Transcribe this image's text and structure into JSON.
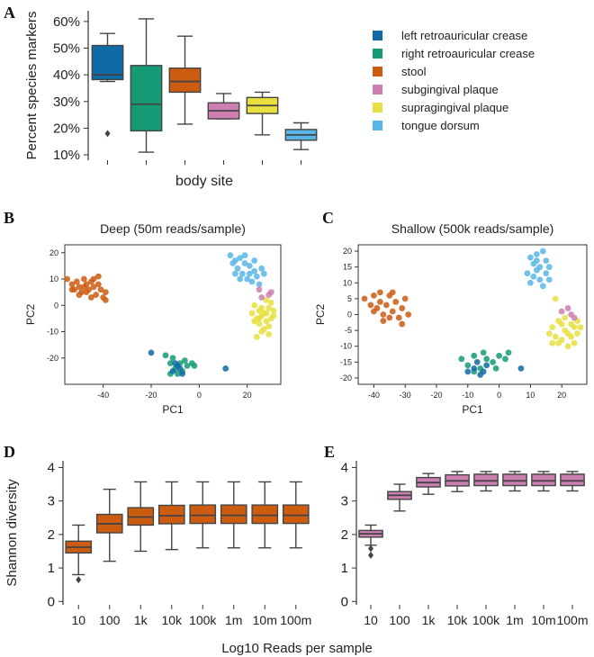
{
  "figure": {
    "shared_xlabel": "Log10 Reads per sample"
  },
  "chart_data": [
    {
      "panel": "A",
      "type": "box",
      "title": "",
      "xlabel": "body site",
      "ylabel": "Percent species markers",
      "ylim": [
        8,
        64
      ],
      "yticks": [
        10,
        20,
        30,
        40,
        50,
        60
      ],
      "ytick_labels": [
        "10%",
        "20%",
        "30%",
        "40%",
        "50%",
        "60%"
      ],
      "legend_position": "right",
      "categories": [
        "left retroauricular crease",
        "right retroauricular crease",
        "stool",
        "subgingival plaque",
        "supragingival plaque",
        "tongue dorsum"
      ],
      "colors": [
        "#0f6aa6",
        "#149b76",
        "#cc5c10",
        "#cc7fb0",
        "#e8e040",
        "#58b6e6"
      ],
      "boxes": [
        {
          "min": 37.5,
          "q1": 38.2,
          "median": 40,
          "q3": 51,
          "max": 55.5,
          "outliers": [
            18
          ]
        },
        {
          "min": 11,
          "q1": 19,
          "median": 29,
          "q3": 43.5,
          "max": 61,
          "outliers": []
        },
        {
          "min": 21.5,
          "q1": 33.5,
          "median": 37.5,
          "q3": 42.5,
          "max": 54.5,
          "outliers": []
        },
        {
          "min": 23.5,
          "q1": 23.5,
          "median": 26.5,
          "q3": 29.5,
          "max": 33,
          "outliers": []
        },
        {
          "min": 17.5,
          "q1": 25.5,
          "median": 28.5,
          "q3": 31.5,
          "max": 33.5,
          "outliers": []
        },
        {
          "min": 12,
          "q1": 15.5,
          "median": 17.5,
          "q3": 19.5,
          "max": 22,
          "outliers": []
        }
      ]
    },
    {
      "panel": "B",
      "type": "scatter",
      "title": "Deep (50m reads/sample)",
      "xlabel": "PC1",
      "ylabel": "PC2",
      "xlim": [
        -56,
        34
      ],
      "ylim": [
        -30,
        23
      ],
      "xticks": [
        -40,
        -20,
        0,
        20
      ],
      "yticks": [
        -20,
        -10,
        0,
        10,
        20
      ],
      "clusters": [
        {
          "group": "stool",
          "color": "#cc5c10",
          "points": [
            [
              -55,
              10
            ],
            [
              -53,
              8
            ],
            [
              -52,
              6
            ],
            [
              -51,
              9
            ],
            [
              -50,
              7
            ],
            [
              -49,
              5
            ],
            [
              -48,
              10
            ],
            [
              -47,
              8
            ],
            [
              -46,
              6
            ],
            [
              -45,
              9
            ],
            [
              -44,
              7
            ],
            [
              -43,
              4
            ],
            [
              -42,
              8
            ],
            [
              -41,
              6
            ],
            [
              -40,
              3
            ],
            [
              -39,
              5
            ],
            [
              -42,
              11
            ],
            [
              -47,
              5
            ],
            [
              -44,
              10
            ],
            [
              -50,
              4
            ],
            [
              -45,
              3
            ],
            [
              -39,
              2
            ],
            [
              -53,
              6
            ],
            [
              -48,
              7
            ]
          ]
        },
        {
          "group": "tongue dorsum",
          "color": "#58b6e6",
          "points": [
            [
              13,
              19
            ],
            [
              15,
              17
            ],
            [
              17,
              18
            ],
            [
              19,
              16
            ],
            [
              21,
              15
            ],
            [
              23,
              13
            ],
            [
              16,
              14
            ],
            [
              18,
              12
            ],
            [
              20,
              10
            ],
            [
              22,
              9
            ],
            [
              24,
              11
            ],
            [
              14,
              16
            ],
            [
              26,
              14
            ],
            [
              25,
              8
            ],
            [
              19,
              19
            ],
            [
              21,
              12
            ],
            [
              17,
              10
            ],
            [
              27,
              12
            ],
            [
              15,
              12
            ],
            [
              23,
              17
            ]
          ]
        },
        {
          "group": "supragingival plaque",
          "color": "#e8e040",
          "points": [
            [
              23,
              0
            ],
            [
              25,
              -2
            ],
            [
              27,
              -3
            ],
            [
              29,
              -1
            ],
            [
              31,
              -2
            ],
            [
              24,
              -5
            ],
            [
              26,
              -4
            ],
            [
              28,
              -6
            ],
            [
              30,
              -5
            ],
            [
              22,
              -3
            ],
            [
              25,
              -7
            ],
            [
              27,
              -9
            ],
            [
              29,
              -8
            ],
            [
              24,
              -12
            ],
            [
              26,
              -1
            ],
            [
              30,
              1
            ],
            [
              28,
              2
            ],
            [
              31,
              -4
            ],
            [
              23,
              -6
            ],
            [
              26,
              -10
            ],
            [
              28,
              -3
            ],
            [
              25,
              -5
            ],
            [
              29,
              -11
            ]
          ]
        },
        {
          "group": "subgingival plaque",
          "color": "#cc7fb0",
          "points": [
            [
              25,
              6
            ],
            [
              29,
              4
            ],
            [
              26,
              3
            ],
            [
              30,
              5
            ]
          ]
        },
        {
          "group": "right retroauricular crease",
          "color": "#149b76",
          "points": [
            [
              -14,
              -19
            ],
            [
              -12,
              -22
            ],
            [
              -10,
              -24
            ],
            [
              -8,
              -22
            ],
            [
              -6,
              -21
            ],
            [
              -5,
              -23
            ],
            [
              -3,
              -22
            ],
            [
              -11,
              -20
            ],
            [
              -9,
              -26
            ],
            [
              -7,
              -25
            ],
            [
              -12,
              -26
            ],
            [
              -2,
              -23
            ]
          ]
        },
        {
          "group": "left retroauricular crease",
          "color": "#0f6aa6",
          "points": [
            [
              -20,
              -18
            ],
            [
              -10,
              -22
            ],
            [
              -8,
              -24
            ],
            [
              -7,
              -26
            ],
            [
              -11,
              -25
            ],
            [
              -9,
              -23
            ],
            [
              11,
              -24
            ]
          ]
        }
      ]
    },
    {
      "panel": "C",
      "type": "scatter",
      "title": "Shallow (500k reads/sample)",
      "xlabel": "PC1",
      "ylabel": "PC2",
      "xlim": [
        -45,
        28
      ],
      "ylim": [
        -22,
        22
      ],
      "xticks": [
        -40,
        -30,
        -20,
        -10,
        0,
        10,
        20
      ],
      "yticks": [
        -20,
        -15,
        -10,
        -5,
        0,
        5,
        10,
        15,
        20
      ],
      "clusters": [
        {
          "group": "stool",
          "color": "#cc5c10",
          "points": [
            [
              -43,
              5
            ],
            [
              -41,
              3
            ],
            [
              -40,
              6
            ],
            [
              -39,
              2
            ],
            [
              -38,
              4
            ],
            [
              -37,
              0
            ],
            [
              -36,
              3
            ],
            [
              -35,
              6
            ],
            [
              -34,
              1
            ],
            [
              -33,
              4
            ],
            [
              -32,
              -1
            ],
            [
              -31,
              2
            ],
            [
              -30,
              5
            ],
            [
              -29,
              0
            ],
            [
              -34,
              7
            ],
            [
              -37,
              -2
            ],
            [
              -40,
              1
            ],
            [
              -31,
              -3
            ],
            [
              -38,
              7
            ],
            [
              -35,
              -1
            ]
          ]
        },
        {
          "group": "tongue dorsum",
          "color": "#58b6e6",
          "points": [
            [
              10,
              18
            ],
            [
              12,
              19
            ],
            [
              14,
              20
            ],
            [
              11,
              16
            ],
            [
              13,
              15
            ],
            [
              15,
              17
            ],
            [
              9,
              13
            ],
            [
              11,
              12
            ],
            [
              13,
              11
            ],
            [
              15,
              13
            ],
            [
              16,
              15
            ],
            [
              12,
              14
            ],
            [
              10,
              10
            ],
            [
              14,
              9
            ],
            [
              16,
              11
            ],
            [
              12,
              17
            ]
          ]
        },
        {
          "group": "supragingival plaque",
          "color": "#e8e040",
          "points": [
            [
              17,
              -4
            ],
            [
              19,
              -2
            ],
            [
              21,
              -5
            ],
            [
              23,
              -3
            ],
            [
              25,
              -6
            ],
            [
              18,
              -7
            ],
            [
              20,
              -8
            ],
            [
              22,
              -6
            ],
            [
              24,
              -9
            ],
            [
              26,
              -4
            ],
            [
              16,
              -6
            ],
            [
              19,
              -9
            ],
            [
              21,
              -1
            ],
            [
              23,
              -7
            ],
            [
              25,
              -2
            ],
            [
              18,
              5
            ],
            [
              20,
              -3
            ],
            [
              22,
              -10
            ],
            [
              24,
              -4
            ],
            [
              17,
              -9
            ]
          ]
        },
        {
          "group": "subgingival plaque",
          "color": "#cc7fb0",
          "points": [
            [
              22,
              2
            ],
            [
              23,
              0
            ],
            [
              20,
              1
            ],
            [
              24,
              -1
            ]
          ]
        },
        {
          "group": "right retroauricular crease",
          "color": "#149b76",
          "points": [
            [
              -12,
              -14
            ],
            [
              -10,
              -16
            ],
            [
              -8,
              -13
            ],
            [
              -6,
              -17
            ],
            [
              -4,
              -14
            ],
            [
              -2,
              -15
            ],
            [
              0,
              -13
            ],
            [
              2,
              -14
            ],
            [
              -8,
              -18
            ],
            [
              -5,
              -12
            ],
            [
              -1,
              -17
            ],
            [
              3,
              -12
            ]
          ]
        },
        {
          "group": "left retroauricular crease",
          "color": "#0f6aa6",
          "points": [
            [
              -10,
              -18
            ],
            [
              -8,
              -17
            ],
            [
              -6,
              -19
            ],
            [
              -4,
              -16
            ],
            [
              -5,
              -18
            ],
            [
              -7,
              -15
            ],
            [
              7,
              -17
            ]
          ]
        }
      ]
    },
    {
      "panel": "D",
      "type": "box",
      "xlabel": "",
      "ylabel": "Shannon diversity",
      "ylim": [
        -0.1,
        4.2
      ],
      "yticks": [
        0,
        1,
        2,
        3,
        4
      ],
      "color": "#cc5c10",
      "categories": [
        "10",
        "100",
        "1k",
        "10k",
        "100k",
        "1m",
        "10m",
        "100m"
      ],
      "boxes": [
        {
          "min": 0.8,
          "q1": 1.45,
          "median": 1.62,
          "q3": 1.8,
          "max": 2.28,
          "outliers": [
            0.65
          ]
        },
        {
          "min": 1.2,
          "q1": 2.05,
          "median": 2.32,
          "q3": 2.6,
          "max": 3.35,
          "outliers": []
        },
        {
          "min": 1.5,
          "q1": 2.28,
          "median": 2.52,
          "q3": 2.8,
          "max": 3.57,
          "outliers": []
        },
        {
          "min": 1.55,
          "q1": 2.32,
          "median": 2.56,
          "q3": 2.87,
          "max": 3.57,
          "outliers": []
        },
        {
          "min": 1.6,
          "q1": 2.33,
          "median": 2.57,
          "q3": 2.88,
          "max": 3.57,
          "outliers": []
        },
        {
          "min": 1.6,
          "q1": 2.33,
          "median": 2.57,
          "q3": 2.88,
          "max": 3.57,
          "outliers": []
        },
        {
          "min": 1.6,
          "q1": 2.33,
          "median": 2.57,
          "q3": 2.88,
          "max": 3.57,
          "outliers": []
        },
        {
          "min": 1.6,
          "q1": 2.33,
          "median": 2.57,
          "q3": 2.88,
          "max": 3.57,
          "outliers": []
        }
      ]
    },
    {
      "panel": "E",
      "type": "box",
      "xlabel": "",
      "ylabel": "",
      "ylim": [
        -0.1,
        4.2
      ],
      "yticks": [
        0,
        1,
        2,
        3,
        4
      ],
      "color": "#cc7fb0",
      "categories": [
        "10",
        "100",
        "1k",
        "10k",
        "100k",
        "1m",
        "10m",
        "100m"
      ],
      "boxes": [
        {
          "min": 1.68,
          "q1": 1.92,
          "median": 2.02,
          "q3": 2.12,
          "max": 2.28,
          "outliers": [
            1.58,
            1.38
          ]
        },
        {
          "min": 2.7,
          "q1": 3.05,
          "median": 3.17,
          "q3": 3.28,
          "max": 3.5,
          "outliers": []
        },
        {
          "min": 3.2,
          "q1": 3.42,
          "median": 3.55,
          "q3": 3.7,
          "max": 3.82,
          "outliers": []
        },
        {
          "min": 3.28,
          "q1": 3.45,
          "median": 3.6,
          "q3": 3.78,
          "max": 3.88,
          "outliers": []
        },
        {
          "min": 3.3,
          "q1": 3.46,
          "median": 3.6,
          "q3": 3.8,
          "max": 3.88,
          "outliers": []
        },
        {
          "min": 3.3,
          "q1": 3.46,
          "median": 3.6,
          "q3": 3.8,
          "max": 3.88,
          "outliers": []
        },
        {
          "min": 3.3,
          "q1": 3.46,
          "median": 3.6,
          "q3": 3.8,
          "max": 3.88,
          "outliers": []
        },
        {
          "min": 3.3,
          "q1": 3.46,
          "median": 3.6,
          "q3": 3.8,
          "max": 3.88,
          "outliers": []
        }
      ]
    }
  ]
}
